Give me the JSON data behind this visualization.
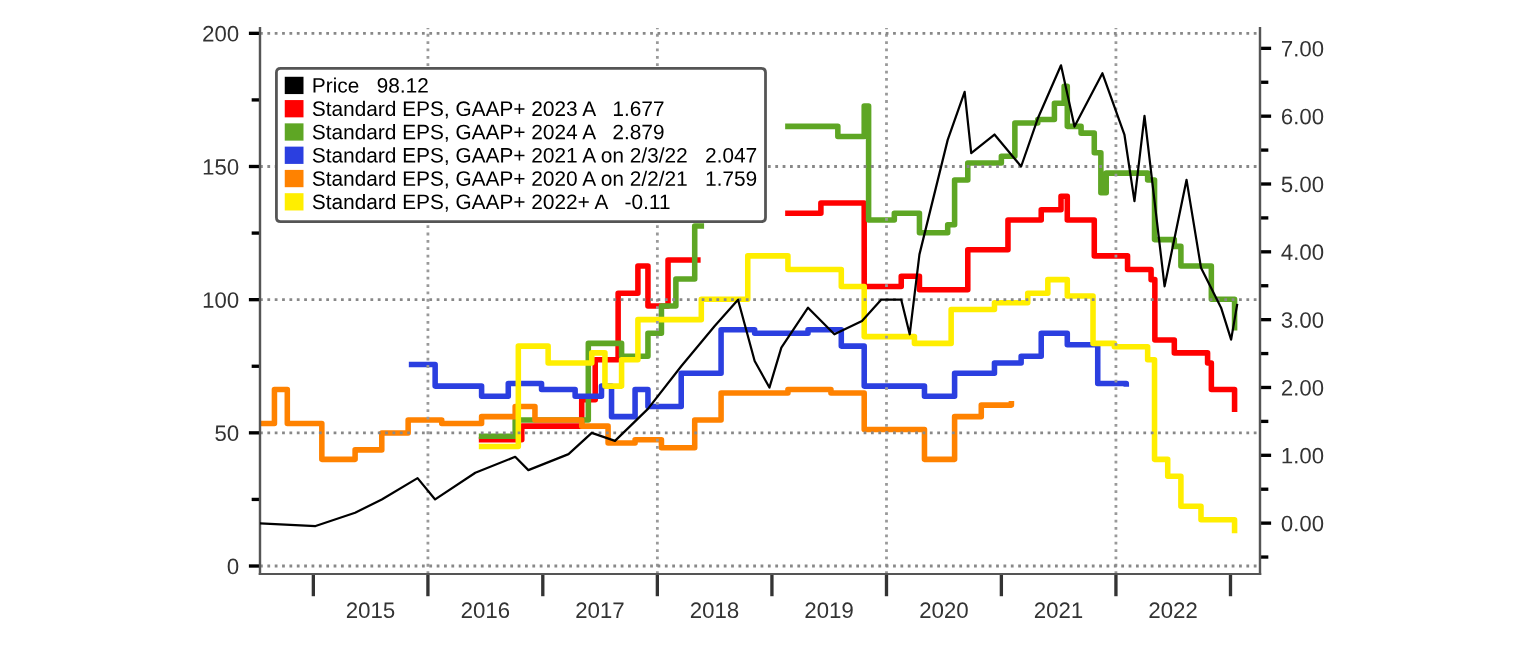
{
  "chart_data": {
    "type": "line",
    "xlim": [
      "2014-07-15",
      "2023-04-05"
    ],
    "xticks": [
      {
        "value": "2015-01-01",
        "label": null
      },
      {
        "value": "2016-01-01",
        "label": null
      },
      {
        "value": "2017-01-01",
        "label": null
      },
      {
        "value": "2018-01-01",
        "label": null
      },
      {
        "value": "2019-01-01",
        "label": null
      },
      {
        "value": "2020-01-01",
        "label": null
      },
      {
        "value": "2021-01-01",
        "label": null
      },
      {
        "value": "2022-01-01",
        "label": null
      },
      {
        "value": "2023-01-01",
        "label": null
      },
      {
        "value": "2015-07-02",
        "label": "2015"
      },
      {
        "value": "2016-07-02",
        "label": "2016"
      },
      {
        "value": "2017-07-02",
        "label": "2017"
      },
      {
        "value": "2018-07-02",
        "label": "2018"
      },
      {
        "value": "2019-07-02",
        "label": "2019"
      },
      {
        "value": "2020-07-02",
        "label": "2020"
      },
      {
        "value": "2021-07-02",
        "label": "2021"
      },
      {
        "value": "2022-07-02",
        "label": "2022"
      }
    ],
    "ylim": [
      -3,
      202
    ],
    "yticks": [
      0,
      {
        "value": 25,
        "label": null
      },
      50,
      {
        "value": 75,
        "label": null
      },
      100,
      {
        "value": 125,
        "label": null
      },
      150,
      {
        "value": 175,
        "label": null
      },
      200
    ],
    "y2lim": [
      -0.75,
      7.3
    ],
    "y2ticks": [
      {
        "value": -0.5,
        "label": null
      },
      {
        "value": 0,
        "label": "0.00"
      },
      {
        "value": 0.5,
        "label": null
      },
      {
        "value": 1,
        "label": "1.00"
      },
      {
        "value": 1.5,
        "label": null
      },
      {
        "value": 2,
        "label": "2.00"
      },
      {
        "value": 2.5,
        "label": null
      },
      {
        "value": 3,
        "label": "3.00"
      },
      {
        "value": 3.5,
        "label": null
      },
      {
        "value": 4,
        "label": "4.00"
      },
      {
        "value": 4.5,
        "label": null
      },
      {
        "value": 5,
        "label": "5.00"
      },
      {
        "value": 5.5,
        "label": null
      },
      {
        "value": 6,
        "label": "6.00"
      },
      {
        "value": 6.5,
        "label": null
      },
      {
        "value": 7,
        "label": "7.00"
      }
    ],
    "grid": "y",
    "legend": "top left",
    "ref_lines": [
      {
        "axis": "x",
        "value": "2016-01-01",
        "label": null,
        "color": "#999999",
        "line_style": "dotted"
      },
      {
        "axis": "x",
        "value": "2018-01-01",
        "label": null,
        "color": "#999999",
        "line_style": "dotted"
      },
      {
        "axis": "x",
        "value": "2020-01-01",
        "label": null,
        "color": "#999999",
        "line_style": "dotted"
      },
      {
        "axis": "x",
        "value": "2022-01-01",
        "label": null,
        "color": "#999999",
        "line_style": "dotted"
      }
    ],
    "series": [
      {
        "name": "Price   98.12",
        "color": "#000000",
        "x": [
          "2014-07-15",
          "2015-01-08",
          "2015-05-14",
          "2015-08-07",
          "2015-11-29",
          "2016-01-24",
          "2016-05-31",
          "2016-10-05",
          "2016-11-16",
          "2017-03-24",
          "2017-06-06",
          "2017-08-19",
          "2017-12-02",
          "2018-03-18",
          "2018-07-02",
          "2018-09-15",
          "2018-11-07",
          "2018-12-24",
          "2019-01-31",
          "2019-04-26",
          "2019-07-19",
          "2019-10-15",
          "2019-12-15",
          "2020-02-17",
          "2020-03-15",
          "2020-04-15",
          "2020-07-14",
          "2020-09-06",
          "2020-09-27",
          "2020-12-10",
          "2021-03-05",
          "2021-04-27",
          "2021-07-10",
          "2021-08-22",
          "2021-11-19",
          "2022-01-28",
          "2022-03-01",
          "2022-04-02",
          "2022-06-05",
          "2022-08-14",
          "2022-09-29",
          "2022-12-02",
          "2023-01-03",
          "2023-01-22"
        ],
        "values": [
          16,
          15,
          20,
          25,
          33,
          25,
          35,
          41,
          36,
          42,
          50,
          47,
          59,
          75,
          90,
          100,
          77,
          67,
          82,
          97,
          87,
          92,
          100,
          100,
          87,
          117,
          160,
          178,
          155,
          162,
          150,
          168,
          188,
          165,
          185,
          162,
          137,
          169,
          105,
          145,
          112,
          97,
          85,
          98
        ]
      },
      {
        "name": "Standard EPS, GAAP+ 2023 A   1.677",
        "type": "step",
        "axis": "y2",
        "color": "#ff0000",
        "x": [
          "2016-06-20",
          "2016-10-26",
          "2017-05-05",
          "2017-06-17",
          "2017-08-29",
          "2017-10-31",
          "2017-12-02",
          "2018-02-04",
          "2018-05-10",
          "2019-02-21",
          "2019-06-06",
          "2019-10-22",
          "2020-02-17",
          "2020-04-15",
          "2020-09-16",
          "2021-01-22",
          "2021-05-08",
          "2021-07-10",
          "2021-07-30",
          "2021-10-24",
          "2022-02-07",
          "2022-04-23",
          "2022-05-05",
          "2022-07-06",
          "2022-10-20",
          "2022-11-01",
          "2023-01-14"
        ],
        "values": [
          1.23,
          1.43,
          1.82,
          2.41,
          3.39,
          3.79,
          3.2,
          3.88,
          null,
          4.57,
          4.72,
          3.49,
          3.64,
          3.44,
          4.03,
          4.47,
          4.62,
          4.82,
          4.47,
          3.94,
          3.74,
          3.59,
          2.7,
          2.51,
          2.36,
          1.97,
          1.68
        ]
      },
      {
        "name": "Standard EPS, GAAP+ 2024 A   2.879",
        "type": "step",
        "axis": "y2",
        "color": "#5ea624",
        "x": [
          "2016-06-20",
          "2016-10-05",
          "2017-05-26",
          "2017-09-09",
          "2017-12-02",
          "2018-01-14",
          "2018-03-01",
          "2018-04-30",
          "2018-05-21",
          "2019-02-21",
          "2019-07-30",
          "2019-10-22",
          "2019-11-05",
          "2020-01-26",
          "2020-04-15",
          "2020-07-14",
          "2020-08-05",
          "2020-09-16",
          "2021-01-01",
          "2021-02-13",
          "2021-04-27",
          "2021-06-19",
          "2021-07-20",
          "2021-07-30",
          "2021-09-12",
          "2021-10-24",
          "2021-11-14",
          "2021-12-01",
          "2022-04-12",
          "2022-05-04",
          "2022-07-06",
          "2022-07-27",
          "2022-10-08",
          "2022-11-01",
          "2023-01-14"
        ],
        "values": [
          1.28,
          1.52,
          2.65,
          2.46,
          2.8,
          3.2,
          3.6,
          4.38,
          null,
          5.85,
          5.7,
          6.15,
          4.47,
          4.57,
          4.28,
          4.4,
          5.06,
          5.31,
          5.41,
          5.9,
          5.95,
          6.19,
          6.44,
          5.85,
          5.75,
          5.46,
          4.87,
          5.16,
          5.06,
          4.18,
          4.08,
          3.79,
          3.79,
          3.3,
          2.88
        ]
      },
      {
        "name": "Standard EPS, GAAP+ 2021 A on 2/3/22   2.047",
        "type": "step",
        "axis": "y2",
        "color": "#2b3fe0",
        "x": [
          "2015-11-10",
          "2016-01-24",
          "2016-06-20",
          "2016-09-13",
          "2016-12-28",
          "2017-04-14",
          "2017-07-07",
          "2017-08-08",
          "2017-10-22",
          "2017-12-02",
          "2018-03-18",
          "2018-07-23",
          "2018-11-07",
          "2019-04-26",
          "2019-08-10",
          "2019-10-22",
          "2020-05-01",
          "2020-08-05",
          "2020-12-10",
          "2021-03-05",
          "2021-05-08",
          "2021-07-30",
          "2021-11-04",
          "2022-02-03"
        ],
        "values": [
          2.34,
          2.02,
          1.87,
          2.06,
          1.97,
          1.87,
          2.02,
          1.57,
          1.97,
          1.72,
          2.21,
          2.85,
          2.8,
          2.85,
          2.61,
          2.02,
          1.87,
          2.21,
          2.36,
          2.46,
          2.8,
          2.63,
          2.06,
          2.05
        ]
      },
      {
        "name": "Standard EPS, GAAP+ 2020 A on 2/2/21   1.759",
        "type": "step",
        "axis": "y2",
        "color": "#ff8200",
        "x": [
          "2014-07-15",
          "2014-08-30",
          "2014-10-10",
          "2015-01-28",
          "2015-05-14",
          "2015-08-07",
          "2015-10-30",
          "2016-02-14",
          "2016-06-20",
          "2016-10-05",
          "2016-12-07",
          "2017-05-05",
          "2017-07-28",
          "2017-10-22",
          "2018-01-14",
          "2018-04-30",
          "2018-07-23",
          "2019-02-21",
          "2019-07-08",
          "2019-10-22",
          "2020-05-01",
          "2020-08-05",
          "2020-10-29",
          "2021-02-02"
        ],
        "values": [
          1.47,
          1.97,
          1.47,
          0.94,
          1.08,
          1.33,
          1.52,
          1.47,
          1.57,
          1.72,
          1.52,
          1.43,
          1.18,
          1.23,
          1.11,
          1.52,
          1.92,
          1.97,
          1.92,
          1.38,
          0.94,
          1.57,
          1.74,
          1.76
        ]
      },
      {
        "name": "Standard EPS, GAAP+ 2022+ A   -0.11",
        "type": "step",
        "axis": "y2",
        "color": "#ffee00",
        "x": [
          "2016-06-20",
          "2016-10-15",
          "2017-01-18",
          "2017-06-06",
          "2017-07-18",
          "2017-09-09",
          "2017-10-31",
          "2018-05-21",
          "2018-10-16",
          "2019-02-21",
          "2019-08-10",
          "2019-10-22",
          "2020-03-30",
          "2020-07-25",
          "2020-12-10",
          "2021-03-26",
          "2021-05-29",
          "2021-07-30",
          "2021-10-20",
          "2021-12-27",
          "2022-04-12",
          "2022-05-04",
          "2022-06-15",
          "2022-07-27",
          "2022-09-29",
          "2023-01-14"
        ],
        "values": [
          1.13,
          2.61,
          2.36,
          2.51,
          2.02,
          2.41,
          3.0,
          3.3,
          3.94,
          3.74,
          3.49,
          2.75,
          2.65,
          3.15,
          3.25,
          3.39,
          3.59,
          3.35,
          2.65,
          2.6,
          2.41,
          0.94,
          0.69,
          0.25,
          0.05,
          -0.11
        ]
      }
    ]
  }
}
